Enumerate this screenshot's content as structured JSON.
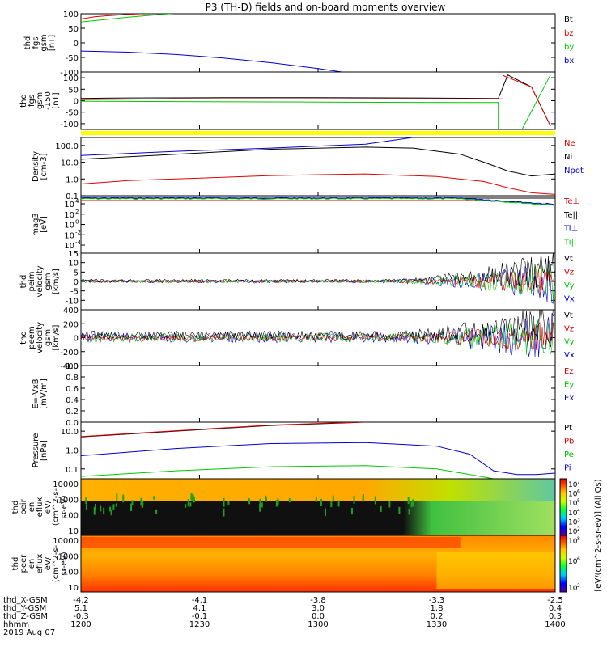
{
  "title": "P3 (TH-D) fields and on-board moments overview",
  "colors": {
    "black": "#000000",
    "red": "#e00000",
    "green": "#00c800",
    "blue": "#0000d0",
    "yellow": "#ffff00"
  },
  "chart_data": {
    "type": "line",
    "x_ticks": [
      "1200",
      "1230",
      "1300",
      "1330",
      "1400"
    ],
    "panels": [
      {
        "id": "fgs-gsm-1",
        "ylabel": [
          "thd",
          "fgs",
          "gsm",
          "[nT]"
        ],
        "ylim": [
          -100,
          100
        ],
        "yticks": [
          "100",
          "50",
          "0",
          "-50",
          "-100"
        ],
        "legend": [
          {
            "text": "Bt",
            "color": "black"
          },
          {
            "text": "bz",
            "color": "red"
          },
          {
            "text": "by",
            "color": "green"
          },
          {
            "text": "bx",
            "color": "blue"
          }
        ],
        "series": [
          {
            "name": "bz",
            "color": "red",
            "x": [
              0,
              0.03,
              0.1,
              0.15
            ],
            "y": [
              82,
              90,
              98,
              102
            ]
          },
          {
            "name": "by",
            "color": "green",
            "x": [
              0,
              0.05,
              0.1,
              0.15,
              0.2
            ],
            "y": [
              72,
              80,
              88,
              95,
              102
            ]
          },
          {
            "name": "bx",
            "color": "blue",
            "x": [
              0,
              0.1,
              0.2,
              0.3,
              0.4,
              0.5,
              0.55
            ],
            "y": [
              -28,
              -32,
              -40,
              -52,
              -68,
              -88,
              -100
            ]
          }
        ]
      },
      {
        "id": "fgs-gsm-2",
        "ylabel": [
          "thd",
          "fgs",
          "gsm",
          "-150",
          "[nT]"
        ],
        "ylim": [
          -125,
          125
        ],
        "yticks": [
          "100",
          "50",
          "0",
          "-50",
          "-100"
        ],
        "legend": [],
        "series": [
          {
            "name": "Bt",
            "color": "black",
            "x": [
              0,
              0.1,
              0.3,
              0.5,
              0.7,
              0.88,
              0.9,
              0.95,
              0.99
            ],
            "y": [
              10,
              12,
              13,
              13,
              12,
              10,
              112,
              60,
              -110
            ]
          },
          {
            "name": "bz",
            "color": "red",
            "x": [
              0,
              0.2,
              0.5,
              0.8,
              0.89,
              0.89,
              0.95,
              0.99
            ],
            "y": [
              5,
              8,
              8,
              8,
              8,
              110,
              60,
              -110
            ]
          },
          {
            "name": "by",
            "color": "green",
            "x": [
              0,
              0.2,
              0.5,
              0.8,
              0.88,
              0.88,
              0.93,
              0.99
            ],
            "y": [
              -2,
              -4,
              -6,
              -8,
              -8,
              -125,
              -125,
              112
            ]
          }
        ]
      },
      {
        "id": "density",
        "ylabel": [
          "Density",
          "[cm-3]"
        ],
        "log": true,
        "ylim": [
          0.1,
          300
        ],
        "yticks": [
          "100.0",
          "10.0",
          "1.0",
          "0.1"
        ],
        "legend": [
          {
            "text": "Ne",
            "color": "red"
          },
          {
            "text": "Ni",
            "color": "black"
          },
          {
            "text": "Npot",
            "color": "blue"
          }
        ],
        "series": [
          {
            "name": "Ni",
            "color": "black",
            "x": [
              0,
              0.2,
              0.4,
              0.6,
              0.7,
              0.8,
              0.85,
              0.9,
              0.95,
              1
            ],
            "y": [
              15,
              30,
              60,
              80,
              70,
              30,
              10,
              3,
              1.5,
              2
            ]
          },
          {
            "name": "Npot",
            "color": "blue",
            "x": [
              0,
              0.2,
              0.4,
              0.6,
              0.7
            ],
            "y": [
              25,
              45,
              70,
              120,
              300
            ]
          },
          {
            "name": "Ne",
            "color": "red",
            "x": [
              0,
              0.1,
              0.2,
              0.4,
              0.6,
              0.75,
              0.85,
              0.9,
              0.95,
              1
            ],
            "y": [
              0.5,
              0.8,
              1.0,
              1.6,
              2.0,
              1.4,
              0.7,
              0.3,
              0.15,
              0.12
            ]
          }
        ]
      },
      {
        "id": "temperature",
        "ylabel": [
          "mag3",
          "[eV]"
        ],
        "legend": [
          {
            "text": "Te⊥",
            "color": "red"
          },
          {
            "text": "Te||",
            "color": "black"
          },
          {
            "text": "Ti⊥",
            "color": "blue"
          },
          {
            "text": "Ti||",
            "color": "green"
          }
        ],
        "ytick_labels": [
          "10",
          "10",
          "10",
          "10",
          "10"
        ],
        "ytick_exps": [
          "4",
          "2",
          "0",
          "-2",
          "-4"
        ],
        "series": []
      },
      {
        "id": "ion-velocity",
        "ylabel": [
          "thd",
          "peim",
          "velocity",
          "gsm",
          "[km/s]"
        ],
        "ylim": [
          -15,
          15
        ],
        "yticks": [
          "15",
          "10",
          "5",
          "0",
          "-5",
          "-10"
        ],
        "legend": [
          {
            "text": "Vt",
            "color": "black"
          },
          {
            "text": "Vz",
            "color": "red"
          },
          {
            "text": "Vy",
            "color": "green"
          },
          {
            "text": "Vx",
            "color": "blue"
          }
        ],
        "series": []
      },
      {
        "id": "electron-velocity",
        "ylabel": [
          "thd",
          "peem",
          "velocity",
          "gsm",
          "[km/s]"
        ],
        "ylim": [
          -400,
          400
        ],
        "yticks": [
          "400",
          "200",
          "0",
          "-200",
          "-400"
        ],
        "legend": [
          {
            "text": "Vt",
            "color": "black"
          },
          {
            "text": "Vz",
            "color": "red"
          },
          {
            "text": "Vy",
            "color": "green"
          },
          {
            "text": "Vx",
            "color": "blue"
          }
        ],
        "series": []
      },
      {
        "id": "efield",
        "ylabel": [
          "E=-VxB",
          "[mV/m]"
        ],
        "ylim": [
          0,
          1
        ],
        "yticks": [
          "1.0",
          "0.8",
          "0.6",
          "0.4",
          "0.2",
          "0.0"
        ],
        "legend": [
          {
            "text": "Ez",
            "color": "red"
          },
          {
            "text": "Ey",
            "color": "green"
          },
          {
            "text": "Ex",
            "color": "blue"
          }
        ],
        "series": []
      },
      {
        "id": "pressure",
        "ylabel": [
          "Pressure",
          "[nPa]"
        ],
        "log": true,
        "ylim": [
          0.03,
          30
        ],
        "yticks": [
          "10.0",
          "1.0",
          "0.1"
        ],
        "legend": [
          {
            "text": "Pt",
            "color": "black"
          },
          {
            "text": "Pb",
            "color": "red"
          },
          {
            "text": "Pe",
            "color": "green"
          },
          {
            "text": "Pi",
            "color": "blue"
          }
        ],
        "series": [
          {
            "name": "Pt",
            "color": "black",
            "x": [
              0,
              0.2,
              0.4,
              0.6
            ],
            "y": [
              5,
              10,
              20,
              30
            ]
          },
          {
            "name": "Pb",
            "color": "red",
            "x": [
              0,
              0.2,
              0.4,
              0.6
            ],
            "y": [
              5.2,
              10.5,
              21,
              31
            ]
          },
          {
            "name": "Pi",
            "color": "blue",
            "x": [
              0,
              0.2,
              0.4,
              0.6,
              0.75,
              0.82,
              0.87,
              0.92,
              0.96,
              1
            ],
            "y": [
              0.5,
              1.2,
              2.2,
              2.5,
              1.6,
              0.6,
              0.08,
              0.05,
              0.05,
              0.06
            ]
          },
          {
            "name": "Pe",
            "color": "green",
            "x": [
              0,
              0.2,
              0.4,
              0.6,
              0.75,
              0.82,
              0.87,
              0.92,
              1
            ],
            "y": [
              0.04,
              0.08,
              0.13,
              0.15,
              0.1,
              0.05,
              0.03,
              0.03,
              0.03
            ]
          }
        ]
      },
      {
        "id": "ion-spectrogram",
        "ylabel": [
          "thd",
          "peir",
          "en",
          "eflux",
          "eV/",
          "(cm^2-s-",
          "sr-eV)"
        ],
        "yticks": [
          "10000",
          "1000",
          "100",
          "10"
        ]
      },
      {
        "id": "electron-spectrogram",
        "ylabel": [
          "thd",
          "peer",
          "en",
          "eflux",
          "eV/",
          "(cm^2-s-",
          "sr-eV)"
        ],
        "yticks": [
          "10000",
          "1000",
          "100",
          "10"
        ]
      }
    ],
    "colorbar": {
      "label": "[eV/(cm^2-s-sr-eV)] (All Qs)",
      "ion_ticks": [
        "10",
        "10",
        "10",
        "10",
        "10",
        "10"
      ],
      "ion_exps": [
        "7",
        "6",
        "5",
        "4",
        "3",
        "2"
      ],
      "electron_ticks": [
        "10",
        "10",
        "10"
      ],
      "electron_exps": [
        "8",
        "6",
        "2"
      ]
    },
    "ephemeris": {
      "labels": [
        "thd_X-GSM",
        "thd_Y-GSM",
        "thd_Z-GSM",
        "hhmm",
        "2019 Aug 07"
      ],
      "rows": [
        [
          "-4.2",
          "-4.1",
          "-3.8",
          "-3.3",
          "-2.5"
        ],
        [
          "5.1",
          "4.1",
          "3.0",
          "1.8",
          "0.4"
        ],
        [
          "-0.3",
          "-0.1",
          "0.0",
          "0.2",
          "0.3"
        ],
        [
          "1200",
          "1230",
          "1300",
          "1330",
          "1400"
        ]
      ]
    }
  }
}
